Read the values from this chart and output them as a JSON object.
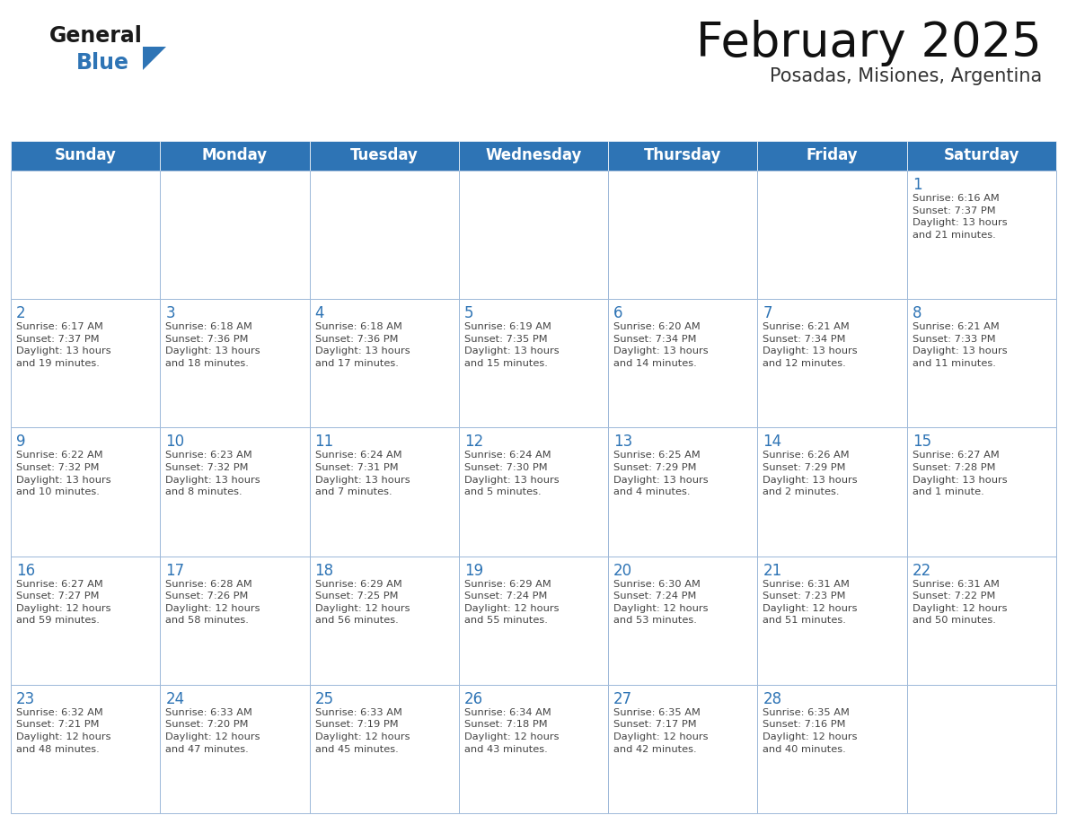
{
  "title": "February 2025",
  "subtitle": "Posadas, Misiones, Argentina",
  "header_bg": "#2E74B5",
  "header_text_color": "#FFFFFF",
  "cell_bg": "#FFFFFF",
  "cell_border_color": "#9DB8D9",
  "day_number_color": "#2E74B5",
  "info_text_color": "#444444",
  "background_color": "#FFFFFF",
  "days_of_week": [
    "Sunday",
    "Monday",
    "Tuesday",
    "Wednesday",
    "Thursday",
    "Friday",
    "Saturday"
  ],
  "weeks": [
    [
      {
        "day": "",
        "info": ""
      },
      {
        "day": "",
        "info": ""
      },
      {
        "day": "",
        "info": ""
      },
      {
        "day": "",
        "info": ""
      },
      {
        "day": "",
        "info": ""
      },
      {
        "day": "",
        "info": ""
      },
      {
        "day": "1",
        "info": "Sunrise: 6:16 AM\nSunset: 7:37 PM\nDaylight: 13 hours\nand 21 minutes."
      }
    ],
    [
      {
        "day": "2",
        "info": "Sunrise: 6:17 AM\nSunset: 7:37 PM\nDaylight: 13 hours\nand 19 minutes."
      },
      {
        "day": "3",
        "info": "Sunrise: 6:18 AM\nSunset: 7:36 PM\nDaylight: 13 hours\nand 18 minutes."
      },
      {
        "day": "4",
        "info": "Sunrise: 6:18 AM\nSunset: 7:36 PM\nDaylight: 13 hours\nand 17 minutes."
      },
      {
        "day": "5",
        "info": "Sunrise: 6:19 AM\nSunset: 7:35 PM\nDaylight: 13 hours\nand 15 minutes."
      },
      {
        "day": "6",
        "info": "Sunrise: 6:20 AM\nSunset: 7:34 PM\nDaylight: 13 hours\nand 14 minutes."
      },
      {
        "day": "7",
        "info": "Sunrise: 6:21 AM\nSunset: 7:34 PM\nDaylight: 13 hours\nand 12 minutes."
      },
      {
        "day": "8",
        "info": "Sunrise: 6:21 AM\nSunset: 7:33 PM\nDaylight: 13 hours\nand 11 minutes."
      }
    ],
    [
      {
        "day": "9",
        "info": "Sunrise: 6:22 AM\nSunset: 7:32 PM\nDaylight: 13 hours\nand 10 minutes."
      },
      {
        "day": "10",
        "info": "Sunrise: 6:23 AM\nSunset: 7:32 PM\nDaylight: 13 hours\nand 8 minutes."
      },
      {
        "day": "11",
        "info": "Sunrise: 6:24 AM\nSunset: 7:31 PM\nDaylight: 13 hours\nand 7 minutes."
      },
      {
        "day": "12",
        "info": "Sunrise: 6:24 AM\nSunset: 7:30 PM\nDaylight: 13 hours\nand 5 minutes."
      },
      {
        "day": "13",
        "info": "Sunrise: 6:25 AM\nSunset: 7:29 PM\nDaylight: 13 hours\nand 4 minutes."
      },
      {
        "day": "14",
        "info": "Sunrise: 6:26 AM\nSunset: 7:29 PM\nDaylight: 13 hours\nand 2 minutes."
      },
      {
        "day": "15",
        "info": "Sunrise: 6:27 AM\nSunset: 7:28 PM\nDaylight: 13 hours\nand 1 minute."
      }
    ],
    [
      {
        "day": "16",
        "info": "Sunrise: 6:27 AM\nSunset: 7:27 PM\nDaylight: 12 hours\nand 59 minutes."
      },
      {
        "day": "17",
        "info": "Sunrise: 6:28 AM\nSunset: 7:26 PM\nDaylight: 12 hours\nand 58 minutes."
      },
      {
        "day": "18",
        "info": "Sunrise: 6:29 AM\nSunset: 7:25 PM\nDaylight: 12 hours\nand 56 minutes."
      },
      {
        "day": "19",
        "info": "Sunrise: 6:29 AM\nSunset: 7:24 PM\nDaylight: 12 hours\nand 55 minutes."
      },
      {
        "day": "20",
        "info": "Sunrise: 6:30 AM\nSunset: 7:24 PM\nDaylight: 12 hours\nand 53 minutes."
      },
      {
        "day": "21",
        "info": "Sunrise: 6:31 AM\nSunset: 7:23 PM\nDaylight: 12 hours\nand 51 minutes."
      },
      {
        "day": "22",
        "info": "Sunrise: 6:31 AM\nSunset: 7:22 PM\nDaylight: 12 hours\nand 50 minutes."
      }
    ],
    [
      {
        "day": "23",
        "info": "Sunrise: 6:32 AM\nSunset: 7:21 PM\nDaylight: 12 hours\nand 48 minutes."
      },
      {
        "day": "24",
        "info": "Sunrise: 6:33 AM\nSunset: 7:20 PM\nDaylight: 12 hours\nand 47 minutes."
      },
      {
        "day": "25",
        "info": "Sunrise: 6:33 AM\nSunset: 7:19 PM\nDaylight: 12 hours\nand 45 minutes."
      },
      {
        "day": "26",
        "info": "Sunrise: 6:34 AM\nSunset: 7:18 PM\nDaylight: 12 hours\nand 43 minutes."
      },
      {
        "day": "27",
        "info": "Sunrise: 6:35 AM\nSunset: 7:17 PM\nDaylight: 12 hours\nand 42 minutes."
      },
      {
        "day": "28",
        "info": "Sunrise: 6:35 AM\nSunset: 7:16 PM\nDaylight: 12 hours\nand 40 minutes."
      },
      {
        "day": "",
        "info": ""
      }
    ]
  ],
  "logo_general_color": "#1a1a1a",
  "logo_blue_color": "#2E74B5",
  "title_fontsize": 38,
  "subtitle_fontsize": 15,
  "header_fontsize": 12,
  "day_number_fontsize": 12,
  "info_fontsize": 8.2
}
